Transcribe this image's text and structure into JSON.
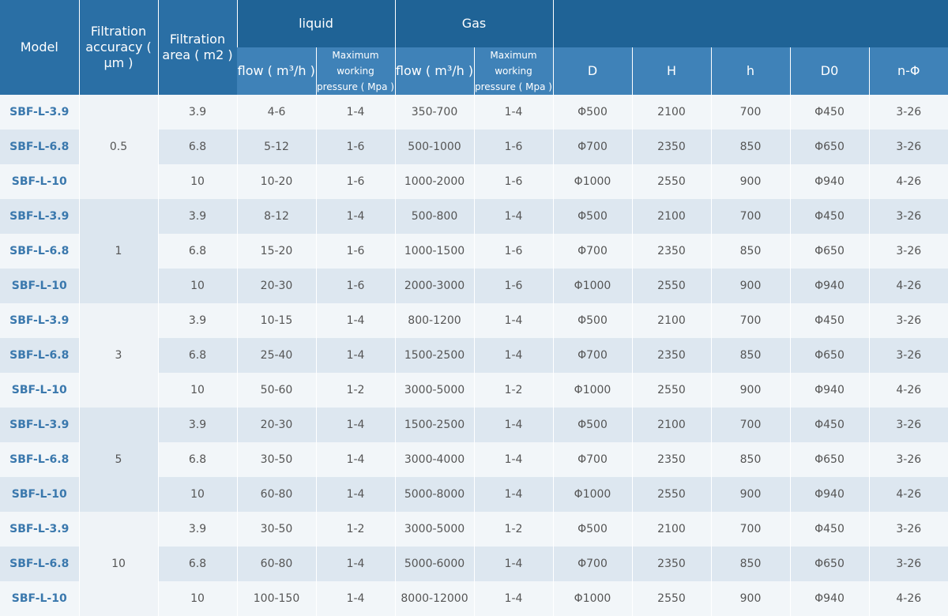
{
  "header": {
    "model": "Model",
    "accuracy": "Filtration accuracy ( μm )",
    "area": "Filtration area ( m2 )",
    "liquid": "liquid",
    "gas": "Gas",
    "liquid_flow": "flow ( m³/h )",
    "liquid_pressure": "Maximum working pressure ( Mpa )",
    "gas_flow": "flow ( m³/h )",
    "gas_pressure": "Maximum working pressure ( Mpa )",
    "D": "D",
    "H": "H",
    "h": "h",
    "D0": "D0",
    "n_phi": "n-Φ"
  },
  "groups": [
    {
      "accuracy": "0.5",
      "rows": [
        [
          "SBF-L-3.9",
          "3.9",
          "4-6",
          "1-4",
          "350-700",
          "1-4",
          "Φ500",
          "2100",
          "700",
          "Φ450",
          "3-26"
        ],
        [
          "SBF-L-6.8",
          "6.8",
          "5-12",
          "1-6",
          "500-1000",
          "1-6",
          "Φ700",
          "2350",
          "850",
          "Φ650",
          "3-26"
        ],
        [
          "SBF-L-10",
          "10",
          "10-20",
          "1-6",
          "1000-2000",
          "1-6",
          "Φ1000",
          "2550",
          "900",
          "Φ940",
          "4-26"
        ]
      ]
    },
    {
      "accuracy": "1",
      "rows": [
        [
          "SBF-L-3.9",
          "3.9",
          "8-12",
          "1-4",
          "500-800",
          "1-4",
          "Φ500",
          "2100",
          "700",
          "Φ450",
          "3-26"
        ],
        [
          "SBF-L-6.8",
          "6.8",
          "15-20",
          "1-6",
          "1000-1500",
          "1-6",
          "Φ700",
          "2350",
          "850",
          "Φ650",
          "3-26"
        ],
        [
          "SBF-L-10",
          "10",
          "20-30",
          "1-6",
          "2000-3000",
          "1-6",
          "Φ1000",
          "2550",
          "900",
          "Φ940",
          "4-26"
        ]
      ]
    },
    {
      "accuracy": "3",
      "rows": [
        [
          "SBF-L-3.9",
          "3.9",
          "10-15",
          "1-4",
          "800-1200",
          "1-4",
          "Φ500",
          "2100",
          "700",
          "Φ450",
          "3-26"
        ],
        [
          "SBF-L-6.8",
          "6.8",
          "25-40",
          "1-4",
          "1500-2500",
          "1-4",
          "Φ700",
          "2350",
          "850",
          "Φ650",
          "3-26"
        ],
        [
          "SBF-L-10",
          "10",
          "50-60",
          "1-2",
          "3000-5000",
          "1-2",
          "Φ1000",
          "2550",
          "900",
          "Φ940",
          "4-26"
        ]
      ]
    },
    {
      "accuracy": "5",
      "rows": [
        [
          "SBF-L-3.9",
          "3.9",
          "20-30",
          "1-4",
          "1500-2500",
          "1-4",
          "Φ500",
          "2100",
          "700",
          "Φ450",
          "3-26"
        ],
        [
          "SBF-L-6.8",
          "6.8",
          "30-50",
          "1-4",
          "3000-4000",
          "1-4",
          "Φ700",
          "2350",
          "850",
          "Φ650",
          "3-26"
        ],
        [
          "SBF-L-10",
          "10",
          "60-80",
          "1-4",
          "5000-8000",
          "1-4",
          "Φ1000",
          "2550",
          "900",
          "Φ940",
          "4-26"
        ]
      ]
    },
    {
      "accuracy": "10",
      "rows": [
        [
          "SBF-L-3.9",
          "3.9",
          "30-50",
          "1-2",
          "3000-5000",
          "1-2",
          "Φ500",
          "2100",
          "700",
          "Φ450",
          "3-26"
        ],
        [
          "SBF-L-6.8",
          "6.8",
          "60-80",
          "1-4",
          "5000-6000",
          "1-4",
          "Φ700",
          "2350",
          "850",
          "Φ650",
          "3-26"
        ],
        [
          "SBF-L-10",
          "10",
          "100-150",
          "1-4",
          "8000-12000",
          "1-4",
          "Φ1000",
          "2550",
          "900",
          "Φ940",
          "4-26"
        ]
      ]
    }
  ]
}
